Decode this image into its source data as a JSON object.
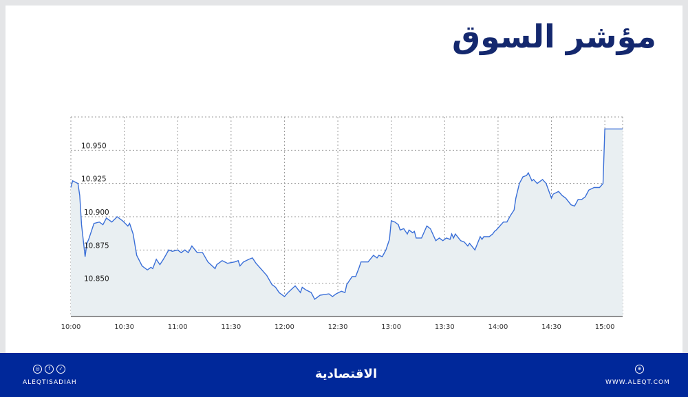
{
  "title": "مؤشر السوق",
  "chart_data": {
    "type": "area",
    "title": "",
    "xlabel": "",
    "ylabel": "",
    "x_ticks": [
      "10:00",
      "10:30",
      "11:00",
      "11:30",
      "12:00",
      "12:30",
      "13:00",
      "13:30",
      "14:00",
      "14:30",
      "15:00"
    ],
    "y_ticks": [
      "10.950",
      "10.925",
      "10.900",
      "10.875",
      "10.850"
    ],
    "xlim": [
      "10:00",
      "15:10"
    ],
    "ylim": [
      10.825,
      10.975
    ],
    "grid": true,
    "grid_style": "dotted",
    "line_color": "#3a6fd8",
    "fill_color": "#e9eff2",
    "series": [
      {
        "points": [
          [
            "10:00",
            10.922
          ],
          [
            "10:01",
            10.927
          ],
          [
            "10:04",
            10.925
          ],
          [
            "10:05",
            10.916
          ],
          [
            "10:06",
            10.894
          ],
          [
            "10:08",
            10.87
          ],
          [
            "10:09",
            10.88
          ],
          [
            "10:10",
            10.883
          ],
          [
            "10:13",
            10.895
          ],
          [
            "10:16",
            10.896
          ],
          [
            "10:18",
            10.894
          ],
          [
            "10:20",
            10.899
          ],
          [
            "10:23",
            10.896
          ],
          [
            "10:26",
            10.9
          ],
          [
            "10:29",
            10.897
          ],
          [
            "10:32",
            10.893
          ],
          [
            "10:33",
            10.895
          ],
          [
            "10:35",
            10.887
          ],
          [
            "10:37",
            10.871
          ],
          [
            "10:40",
            10.863
          ],
          [
            "10:43",
            10.86
          ],
          [
            "10:45",
            10.862
          ],
          [
            "10:46",
            10.861
          ],
          [
            "10:48",
            10.868
          ],
          [
            "10:50",
            10.864
          ],
          [
            "10:52",
            10.868
          ],
          [
            "10:55",
            10.875
          ],
          [
            "10:57",
            10.874
          ],
          [
            "11:00",
            10.875
          ],
          [
            "11:02",
            10.873
          ],
          [
            "11:04",
            10.875
          ],
          [
            "11:06",
            10.873
          ],
          [
            "11:08",
            10.878
          ],
          [
            "11:11",
            10.873
          ],
          [
            "11:14",
            10.873
          ],
          [
            "11:17",
            10.866
          ],
          [
            "11:21",
            10.861
          ],
          [
            "11:22",
            10.864
          ],
          [
            "11:25",
            10.867
          ],
          [
            "11:28",
            10.865
          ],
          [
            "11:32",
            10.866
          ],
          [
            "11:34",
            10.867
          ],
          [
            "11:35",
            10.863
          ],
          [
            "11:37",
            10.866
          ],
          [
            "11:40",
            10.868
          ],
          [
            "11:42",
            10.869
          ],
          [
            "11:44",
            10.865
          ],
          [
            "11:48",
            10.859
          ],
          [
            "11:50",
            10.856
          ],
          [
            "11:53",
            10.849
          ],
          [
            "11:55",
            10.847
          ],
          [
            "11:57",
            10.843
          ],
          [
            "12:00",
            10.84
          ],
          [
            "12:02",
            10.843
          ],
          [
            "12:06",
            10.848
          ],
          [
            "12:09",
            10.843
          ],
          [
            "12:10",
            10.847
          ],
          [
            "12:12",
            10.845
          ],
          [
            "12:15",
            10.843
          ],
          [
            "12:17",
            10.838
          ],
          [
            "12:20",
            10.841
          ],
          [
            "12:25",
            10.842
          ],
          [
            "12:27",
            10.84
          ],
          [
            "12:29",
            10.842
          ],
          [
            "12:32",
            10.844
          ],
          [
            "12:34",
            10.843
          ],
          [
            "12:35",
            10.849
          ],
          [
            "12:38",
            10.855
          ],
          [
            "12:40",
            10.855
          ],
          [
            "12:42",
            10.862
          ],
          [
            "12:43",
            10.866
          ],
          [
            "12:45",
            10.866
          ],
          [
            "12:47",
            10.866
          ],
          [
            "12:50",
            10.871
          ],
          [
            "12:52",
            10.869
          ],
          [
            "12:53",
            10.871
          ],
          [
            "12:55",
            10.87
          ],
          [
            "12:57",
            10.875
          ],
          [
            "12:59",
            10.883
          ],
          [
            "13:00",
            10.897
          ],
          [
            "13:02",
            10.896
          ],
          [
            "13:04",
            10.894
          ],
          [
            "13:05",
            10.89
          ],
          [
            "13:07",
            10.891
          ],
          [
            "13:09",
            10.887
          ],
          [
            "13:10",
            10.89
          ],
          [
            "13:12",
            10.888
          ],
          [
            "13:13",
            10.889
          ],
          [
            "13:14",
            10.884
          ],
          [
            "13:17",
            10.884
          ],
          [
            "13:20",
            10.893
          ],
          [
            "13:22",
            10.891
          ],
          [
            "13:25",
            10.882
          ],
          [
            "13:27",
            10.884
          ],
          [
            "13:29",
            10.882
          ],
          [
            "13:31",
            10.884
          ],
          [
            "13:33",
            10.883
          ],
          [
            "13:34",
            10.887
          ],
          [
            "13:35",
            10.884
          ],
          [
            "13:36",
            10.887
          ],
          [
            "13:39",
            10.882
          ],
          [
            "13:41",
            10.881
          ],
          [
            "13:43",
            10.878
          ],
          [
            "13:44",
            10.88
          ],
          [
            "13:47",
            10.875
          ],
          [
            "13:50",
            10.885
          ],
          [
            "13:51",
            10.883
          ],
          [
            "13:52",
            10.885
          ],
          [
            "13:55",
            10.885
          ],
          [
            "13:57",
            10.887
          ],
          [
            "13:58",
            10.889
          ],
          [
            "13:59",
            10.89
          ],
          [
            "14:01",
            10.893
          ],
          [
            "14:03",
            10.896
          ],
          [
            "14:05",
            10.896
          ],
          [
            "14:07",
            10.901
          ],
          [
            "14:09",
            10.905
          ],
          [
            "14:10",
            10.914
          ],
          [
            "14:12",
            10.925
          ],
          [
            "14:14",
            10.93
          ],
          [
            "14:16",
            10.931
          ],
          [
            "14:17",
            10.933
          ],
          [
            "14:19",
            10.927
          ],
          [
            "14:20",
            10.928
          ],
          [
            "14:22",
            10.925
          ],
          [
            "14:24",
            10.927
          ],
          [
            "14:25",
            10.928
          ],
          [
            "14:27",
            10.925
          ],
          [
            "14:30",
            10.914
          ],
          [
            "14:31",
            10.917
          ],
          [
            "14:34",
            10.919
          ],
          [
            "14:36",
            10.916
          ],
          [
            "14:38",
            10.914
          ],
          [
            "14:41",
            10.909
          ],
          [
            "14:43",
            10.908
          ],
          [
            "14:45",
            10.913
          ],
          [
            "14:47",
            10.913
          ],
          [
            "14:49",
            10.915
          ],
          [
            "14:51",
            10.92
          ],
          [
            "14:54",
            10.922
          ],
          [
            "14:57",
            10.922
          ],
          [
            "14:59",
            10.925
          ],
          [
            "15:00",
            10.966
          ],
          [
            "15:10",
            10.966
          ]
        ]
      }
    ]
  },
  "footer": {
    "handle": "ALEQTISADIAH",
    "logo": "الاقتصادية",
    "website": "WWW.ALEQT.COM",
    "social_icons": [
      "instagram-icon",
      "facebook-icon",
      "twitter-icon"
    ],
    "web_icon": "globe-icon",
    "background": "#00289a"
  }
}
